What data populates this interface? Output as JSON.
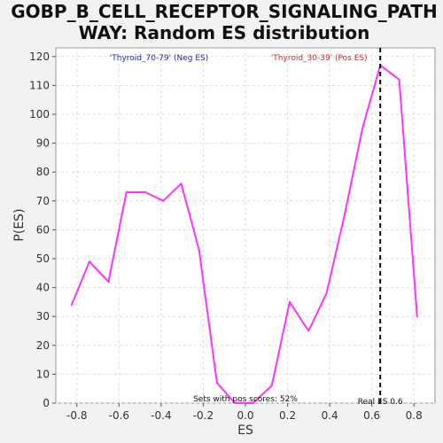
{
  "chart_data": {
    "type": "line",
    "title_lines": [
      "GOBP_B_CELL_RECEPTOR_SIGNALING_PATH",
      "WAY: Random ES distribution"
    ],
    "xlabel": "ES",
    "ylabel": "P(ES)",
    "xlim": [
      -0.9,
      0.9
    ],
    "ylim": [
      0,
      123
    ],
    "x_ticks": [
      -0.8,
      -0.6,
      -0.4,
      -0.2,
      0.0,
      0.2,
      0.4,
      0.6,
      0.8
    ],
    "x_tick_labels": [
      "-0.8",
      "-0.6",
      "-0.4",
      "-0.2",
      "0.0",
      "0.2",
      "0.4",
      "0.6",
      "0.8"
    ],
    "y_ticks": [
      0,
      10,
      20,
      30,
      40,
      50,
      60,
      70,
      80,
      90,
      100,
      110,
      120
    ],
    "y_tick_labels": [
      "0",
      "10",
      "20",
      "30",
      "40",
      "50",
      "60",
      "70",
      "80",
      "90",
      "100",
      "110",
      "120"
    ],
    "grid": true,
    "series": [
      {
        "color": "#ff33ff",
        "x": [
          -0.825,
          -0.74,
          -0.65,
          -0.565,
          -0.475,
          -0.39,
          -0.305,
          -0.22,
          -0.135,
          -0.05,
          0.035,
          0.125,
          0.21,
          0.3,
          0.385,
          0.47,
          0.555,
          0.64,
          0.73,
          0.815
        ],
        "y": [
          34,
          49,
          42,
          73,
          73,
          70,
          76,
          53,
          7,
          0,
          0,
          6,
          35,
          25,
          38,
          65,
          95,
          117,
          112,
          30
        ]
      }
    ],
    "real_es": {
      "x": 0.64,
      "label": "Real ES 0.6"
    },
    "annotations": {
      "neg_label": "'Thyroid_70-79' (Neg ES)",
      "pos_label": "'Thyroid_30-39' (Pos ES)",
      "sets_pos": "Sets with pos scores: 52%"
    },
    "colors": {
      "neg": "#2222dd",
      "pos": "#dd2222",
      "line": "#ff33ff",
      "real_es": "#000000"
    }
  }
}
